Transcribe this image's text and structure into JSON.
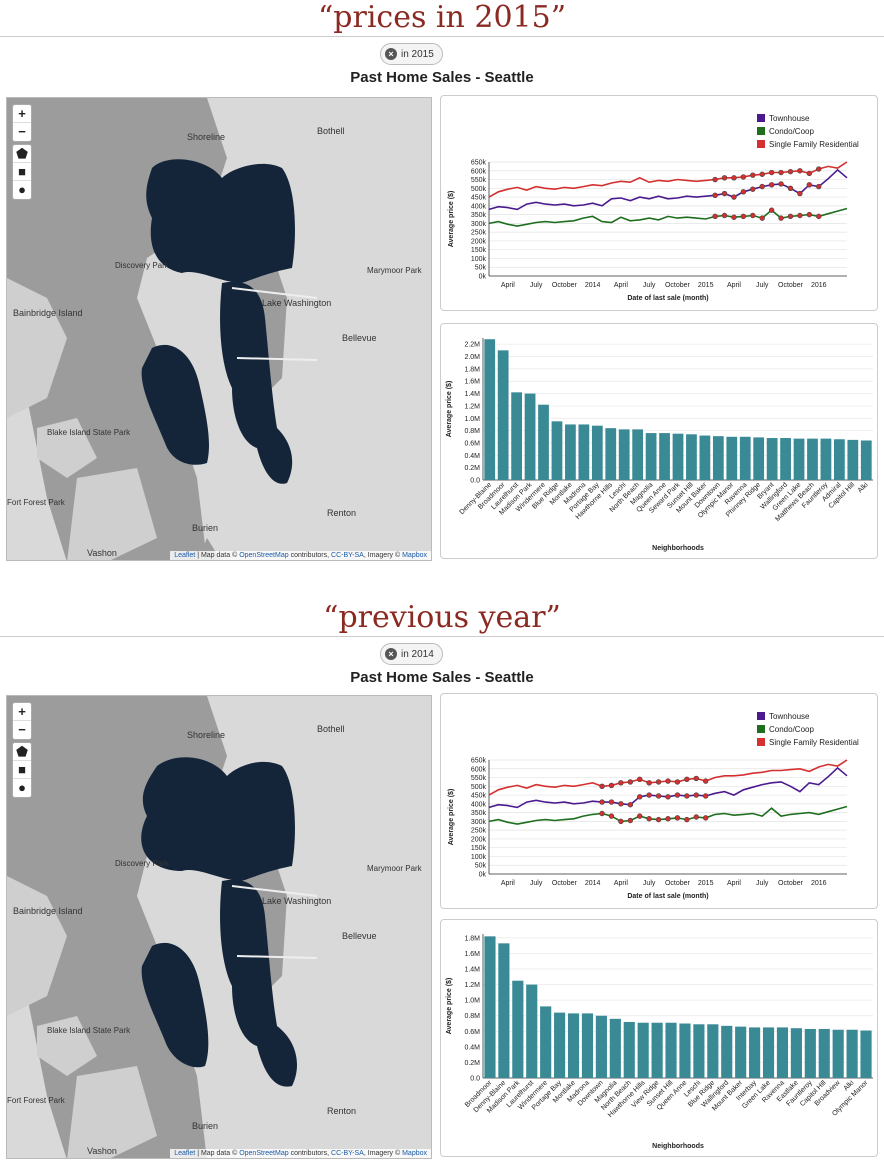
{
  "captions": [
    "“prices in 2015”",
    "“previous year”"
  ],
  "brand_colors": {
    "townhouse": "#4b1a8f",
    "condo": "#1e6e1e",
    "sfr": "#d43030",
    "bar": "#3a8a96",
    "cluster": "#14253a"
  },
  "panels": [
    {
      "chip": "in 2015",
      "title": "Past Home Sales - Seattle",
      "map": {
        "zoom_in": "+",
        "zoom_out": "−",
        "draw_tools": [
          "pentagon-icon",
          "square-icon",
          "circle-icon"
        ],
        "places": [
          "Shoreline",
          "Bothell",
          "Discovery Park",
          "Marymoor Park",
          "Bainbridge Island",
          "Lake Washington",
          "Bellevue",
          "Blake Island State Park",
          "Burien",
          "Renton",
          "Vashon",
          "Fort Forest Park"
        ],
        "attribution": {
          "leaflet": "Leaflet",
          "map_data": " | Map data © ",
          "osm": "OpenStreetMap",
          "contributors": " contributors, ",
          "license": "CC-BY-SA",
          "imagery": ", Imagery © ",
          "mapbox": "Mapbox"
        }
      },
      "line_chart": {
        "type": "line",
        "legend": [
          "Townhouse",
          "Condo/Coop",
          "Single Family Residential"
        ],
        "ylabel": "Average price ($)",
        "xlabel": "Date of last sale (month)",
        "yticks": [
          "650k",
          "600k",
          "550k",
          "500k",
          "450k",
          "400k",
          "350k",
          "300k",
          "250k",
          "200k",
          "150k",
          "100k",
          "50k",
          "0k"
        ],
        "xticks": [
          "April",
          "July",
          "October",
          "2014",
          "April",
          "July",
          "October",
          "2015",
          "April",
          "July",
          "October",
          "2016"
        ],
        "ylim": [
          0,
          650000
        ],
        "highlight_start": 24,
        "highlight_end": 35,
        "series": [
          {
            "name": "Townhouse",
            "values": [
              380,
              395,
              390,
              380,
              410,
              420,
              410,
              405,
              410,
              400,
              405,
              415,
              400,
              440,
              445,
              430,
              450,
              440,
              455,
              440,
              445,
              455,
              450,
              455,
              460,
              470,
              450,
              480,
              495,
              510,
              520,
              525,
              500,
              470,
              520,
              510,
              555,
              605,
              560
            ]
          },
          {
            "name": "Condo/Coop",
            "values": [
              300,
              310,
              295,
              285,
              295,
              305,
              310,
              305,
              310,
              315,
              330,
              340,
              310,
              305,
              335,
              315,
              320,
              330,
              320,
              340,
              330,
              335,
              330,
              325,
              340,
              345,
              335,
              340,
              345,
              330,
              375,
              330,
              340,
              345,
              350,
              340,
              355,
              370,
              385
            ]
          },
          {
            "name": "Single Family Residential",
            "values": [
              450,
              480,
              495,
              505,
              490,
              510,
              500,
              495,
              505,
              500,
              510,
              520,
              515,
              530,
              540,
              535,
              560,
              535,
              545,
              540,
              550,
              545,
              540,
              545,
              550,
              560,
              560,
              565,
              575,
              580,
              590,
              590,
              595,
              600,
              585,
              610,
              625,
              615,
              650
            ]
          }
        ]
      },
      "bar_chart": {
        "type": "bar",
        "ylabel": "Average price ($)",
        "xlabel": "Neighborhoods",
        "yticks": [
          "2.2M",
          "2.0M",
          "1.8M",
          "1.6M",
          "1.4M",
          "1.2M",
          "1.0M",
          "0.8M",
          "0.6M",
          "0.4M",
          "0.2M",
          "0.0"
        ],
        "ylim": [
          0,
          2.3
        ],
        "categories": [
          "Denny-Blaine",
          "Broadmoor",
          "Laurelhurst",
          "Madison Park",
          "Windermere",
          "Blue Ridge",
          "Montlake",
          "Madrona",
          "Portage Bay",
          "Hawthorne Hills",
          "Leschi",
          "North Beach",
          "Magnolia",
          "Queen Anne",
          "Seward Park",
          "Sunset Hill",
          "Mount Baker",
          "Downtown",
          "Olympic Manor",
          "Ravenna",
          "Phinney Ridge",
          "Bryant",
          "Wallingford",
          "Green Lake",
          "Matthews Beach",
          "Fauntleroy",
          "Admiral",
          "Capitol Hill",
          "Alki"
        ],
        "values": [
          2.28,
          2.1,
          1.42,
          1.4,
          1.22,
          0.95,
          0.9,
          0.9,
          0.88,
          0.84,
          0.82,
          0.82,
          0.76,
          0.76,
          0.75,
          0.74,
          0.72,
          0.71,
          0.7,
          0.7,
          0.69,
          0.68,
          0.68,
          0.67,
          0.67,
          0.67,
          0.66,
          0.65,
          0.64
        ]
      }
    },
    {
      "chip": "in 2014",
      "title": "Past Home Sales - Seattle",
      "map": {
        "zoom_in": "+",
        "zoom_out": "−",
        "draw_tools": [
          "pentagon-icon",
          "square-icon",
          "circle-icon"
        ],
        "places": [
          "Shoreline",
          "Bothell",
          "Discovery Park",
          "Marymoor Park",
          "Bainbridge Island",
          "Lake Washington",
          "Bellevue",
          "Blake Island State Park",
          "Burien",
          "Renton",
          "Vashon",
          "Fort Forest Park"
        ],
        "attribution": {
          "leaflet": "Leaflet",
          "map_data": " | Map data © ",
          "osm": "OpenStreetMap",
          "contributors": " contributors, ",
          "license": "CC-BY-SA",
          "imagery": ", Imagery © ",
          "mapbox": "Mapbox"
        }
      },
      "line_chart": {
        "type": "line",
        "legend": [
          "Townhouse",
          "Condo/Coop",
          "Single Family Residential"
        ],
        "ylabel": "Average price ($)",
        "xlabel": "Date of last sale (month)",
        "yticks": [
          "650k",
          "600k",
          "550k",
          "500k",
          "450k",
          "400k",
          "350k",
          "300k",
          "250k",
          "200k",
          "150k",
          "100k",
          "50k",
          "0k"
        ],
        "xticks": [
          "April",
          "July",
          "October",
          "2014",
          "April",
          "July",
          "October",
          "2015",
          "April",
          "July",
          "October",
          "2016"
        ],
        "ylim": [
          0,
          650000
        ],
        "highlight_start": 12,
        "highlight_end": 23,
        "series": [
          {
            "name": "Townhouse",
            "values": [
              380,
              395,
              390,
              380,
              410,
              420,
              410,
              405,
              410,
              400,
              405,
              415,
              410,
              410,
              400,
              395,
              440,
              450,
              445,
              440,
              450,
              445,
              450,
              445,
              460,
              470,
              450,
              480,
              495,
              510,
              520,
              525,
              500,
              470,
              520,
              510,
              555,
              605,
              560
            ]
          },
          {
            "name": "Condo/Coop",
            "values": [
              300,
              310,
              295,
              285,
              295,
              305,
              310,
              305,
              310,
              315,
              330,
              340,
              345,
              330,
              300,
              305,
              330,
              315,
              310,
              315,
              320,
              310,
              325,
              320,
              340,
              345,
              335,
              340,
              345,
              330,
              375,
              330,
              340,
              345,
              350,
              340,
              355,
              370,
              385
            ]
          },
          {
            "name": "Single Family Residential",
            "values": [
              450,
              480,
              495,
              505,
              490,
              510,
              500,
              495,
              505,
              500,
              510,
              520,
              500,
              505,
              520,
              525,
              540,
              520,
              525,
              530,
              525,
              540,
              545,
              530,
              550,
              560,
              560,
              565,
              575,
              580,
              590,
              590,
              595,
              600,
              585,
              610,
              625,
              615,
              650
            ]
          }
        ]
      },
      "bar_chart": {
        "type": "bar",
        "ylabel": "Average price ($)",
        "xlabel": "Neighborhoods",
        "yticks": [
          "1.8M",
          "1.6M",
          "1.4M",
          "1.2M",
          "1.0M",
          "0.8M",
          "0.6M",
          "0.4M",
          "0.2M",
          "0.0"
        ],
        "ylim": [
          0,
          1.85
        ],
        "categories": [
          "Broadmoor",
          "Denny-Blaine",
          "Madison Park",
          "Laurelhurst",
          "Windermere",
          "Portage Bay",
          "Montlake",
          "Madrona",
          "Downtown",
          "Magnolia",
          "North Beach",
          "Hawthorne Hills",
          "View Ridge",
          "Sunset Hill",
          "Queen Anne",
          "Leschi",
          "Blue Ridge",
          "Wallingford",
          "Mount Baker",
          "Interbay",
          "Green Lake",
          "Ravenna",
          "Eastlake",
          "Fauntleroy",
          "Capitol Hill",
          "Broadview",
          "Alki",
          "Olympic Manor"
        ],
        "values": [
          1.82,
          1.73,
          1.25,
          1.2,
          0.92,
          0.84,
          0.83,
          0.83,
          0.8,
          0.76,
          0.72,
          0.71,
          0.71,
          0.71,
          0.7,
          0.69,
          0.69,
          0.67,
          0.66,
          0.65,
          0.65,
          0.65,
          0.64,
          0.63,
          0.63,
          0.62,
          0.62,
          0.61
        ]
      }
    }
  ]
}
